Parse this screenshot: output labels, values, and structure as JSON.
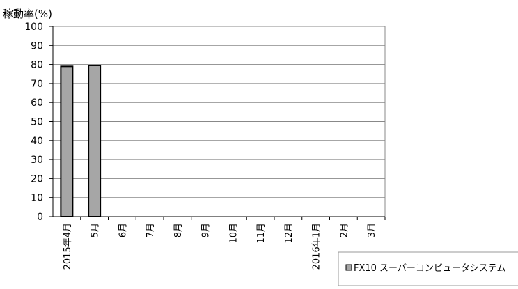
{
  "chart_data": {
    "type": "bar",
    "ylabel": "稼動率(%)",
    "ylim": [
      0,
      100
    ],
    "yticks": [
      0,
      10,
      20,
      30,
      40,
      50,
      60,
      70,
      80,
      90,
      100
    ],
    "grid": true,
    "categories": [
      "2015年4月",
      "5月",
      "6月",
      "7月",
      "8月",
      "9月",
      "10月",
      "11月",
      "12月",
      "2016年1月",
      "2月",
      "3月"
    ],
    "series": [
      {
        "name": "FX10 スーパーコンピュータシステム",
        "values": [
          79,
          79.5,
          0,
          0,
          0,
          0,
          0,
          0,
          0,
          0,
          0,
          0
        ]
      }
    ],
    "legend_position": "bottom-right",
    "colors": {
      "bar_fill": "#a6a6a6",
      "bar_stroke": "#000000",
      "grid": "#888888",
      "axis": "#000000"
    }
  }
}
